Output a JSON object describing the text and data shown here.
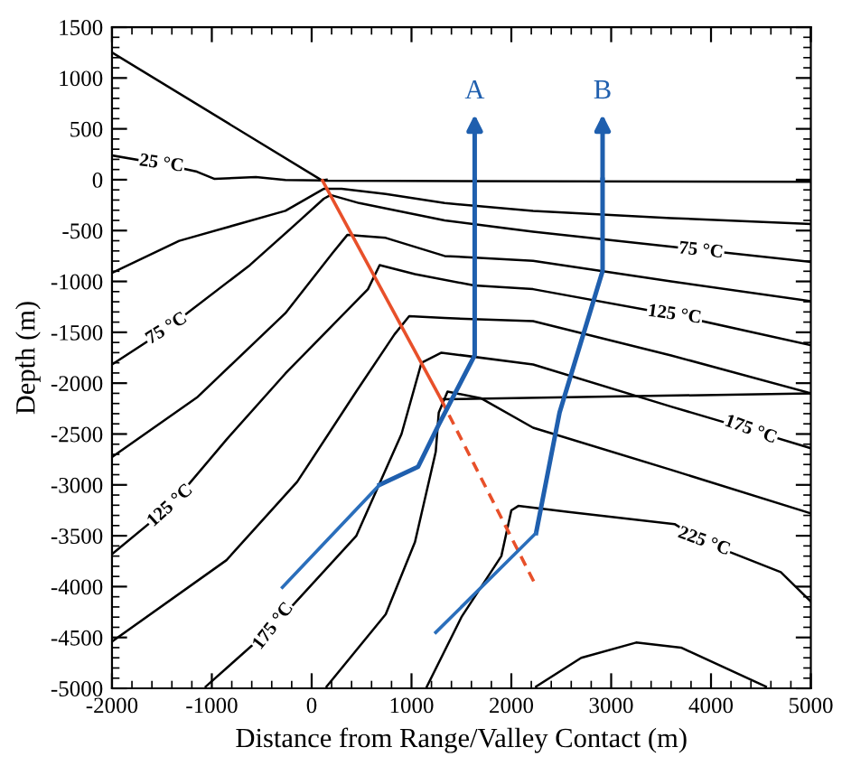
{
  "chart_data": {
    "type": "line",
    "xlabel": "Distance from Range/Valley Contact (m)",
    "ylabel": "Depth (m)",
    "xlim": [
      -2000,
      5000
    ],
    "ylim": [
      -5000,
      1500
    ],
    "xticks": [
      -2000,
      -1000,
      0,
      1000,
      2000,
      3000,
      4000,
      5000
    ],
    "yticks": [
      -5000,
      -4500,
      -4000,
      -3500,
      -3000,
      -2500,
      -2000,
      -1500,
      -1000,
      -500,
      0,
      500,
      1000,
      1500
    ],
    "grid": false,
    "legend": false,
    "marker": "none",
    "series": [
      {
        "color": "#000000",
        "x": [
          -2000,
          109,
          5000
        ],
        "values": [
          1250,
          -10,
          -20
        ]
      },
      {
        "color": "#000000",
        "x": [
          1296,
          5000
        ],
        "values": [
          -2159,
          -2100
        ]
      },
      {
        "color": "#000000",
        "x": [
          -2000,
          -1504,
          -1149,
          -972,
          -559,
          -263,
          91,
          150
        ],
        "values": [
          239,
          155,
          79,
          8,
          26,
          -3,
          -8,
          0
        ]
      },
      {
        "color": "#000000",
        "x": [
          -2000,
          -1327,
          -263,
          120,
          300,
          742,
          1332,
          2218,
          3600,
          5000
        ],
        "values": [
          -916,
          -601,
          -306,
          -90,
          -90,
          -140,
          -230,
          -306,
          -377,
          -436
        ]
      },
      {
        "color": "#000000",
        "x": [
          -2000,
          -1451,
          -618,
          -145,
          121,
          190,
          476,
          1332,
          2218,
          3635,
          5000
        ],
        "values": [
          -1816,
          -1466,
          -839,
          -424,
          -187,
          -150,
          -230,
          -400,
          -512,
          -662,
          -809
        ]
      },
      {
        "color": "#000000",
        "x": [
          -2000,
          -1149,
          -263,
          210,
          357,
          742,
          1332,
          2218,
          3600,
          5000
        ],
        "values": [
          -2727,
          -2141,
          -1312,
          -720,
          -543,
          -572,
          -750,
          -797,
          -999,
          -1195
        ]
      },
      {
        "color": "#000000",
        "x": [
          -2000,
          -1415,
          -853,
          -263,
          564,
          681,
          1035,
          1628,
          2218,
          3635,
          5000
        ],
        "values": [
          -3681,
          -3207,
          -2555,
          -1905,
          -1076,
          -839,
          -928,
          -1040,
          -1076,
          -1330,
          -1626
        ]
      },
      {
        "color": "#000000",
        "x": [
          -2000,
          -853,
          -145,
          446,
          830,
          977,
          1332,
          2218,
          3600,
          5000
        ],
        "values": [
          -4540,
          -3740,
          -2970,
          -2083,
          -1520,
          -1342,
          -1360,
          -1390,
          -1727,
          -2100
        ]
      },
      {
        "color": "#000000",
        "x": [
          -1061,
          -382,
          446,
          900,
          1100,
          1300,
          2218,
          3600,
          4397,
          5000
        ],
        "values": [
          -4983,
          -4391,
          -3503,
          -2500,
          -1800,
          -1700,
          -1816,
          -2230,
          -2461,
          -2640
        ]
      },
      {
        "color": "#000000",
        "x": [
          150,
          742,
          1035,
          1243,
          1273,
          1361,
          1700,
          2218,
          3600,
          5000
        ],
        "values": [
          -4983,
          -4272,
          -3562,
          -2674,
          -2289,
          -2083,
          -2150,
          -2438,
          -2852,
          -3280
        ]
      },
      {
        "color": "#000000",
        "x": [
          1154,
          1500,
          1900,
          2000,
          2070,
          2572,
          3635,
          3930,
          4699,
          5000
        ],
        "values": [
          -4983,
          -4300,
          -3700,
          -3250,
          -3207,
          -3266,
          -3385,
          -3560,
          -3858,
          -4148
        ]
      },
      {
        "color": "#000000",
        "x": [
          2248,
          2700,
          3250,
          3700,
          4550
        ],
        "values": [
          -4983,
          -4700,
          -4550,
          -4600,
          -4983
        ]
      },
      {
        "color": "#e8502a",
        "x": [
          109,
          1296
        ],
        "values": [
          -10,
          -2159
        ]
      },
      {
        "color": "#e8502a",
        "line_style": "dashed",
        "x": [
          1296,
          2235
        ],
        "values": [
          -2159,
          -3970
        ]
      },
      {
        "name": "A",
        "color": "#1f5fae",
        "x": [
          1633,
          1633,
          1273,
          1066,
          681
        ],
        "values": [
          0,
          -1727,
          -2408,
          -2822,
          -2999
        ]
      },
      {
        "color": "#2a6ebb",
        "x": [
          681,
          -293
        ],
        "values": [
          -2999,
          -4006
        ]
      },
      {
        "name": "B",
        "color": "#1f5fae",
        "x": [
          2914,
          2914,
          2483,
          2248
        ],
        "values": [
          0,
          -898,
          -2289,
          -3473
        ]
      },
      {
        "color": "#2a6ebb",
        "x": [
          2248,
          1243
        ],
        "values": [
          -3473,
          -4450
        ]
      }
    ],
    "annotations": [
      {
        "text": "25 °C",
        "x": -1504,
        "y": 155
      },
      {
        "text": "75 °C",
        "x": -1451,
        "y": -1466
      },
      {
        "text": "75 °C",
        "x": 3900,
        "y": -700
      },
      {
        "text": "125 °C",
        "x": -1415,
        "y": -3207
      },
      {
        "text": "125 °C",
        "x": 3635,
        "y": -1330
      },
      {
        "text": "175 °C",
        "x": -382,
        "y": -4391
      },
      {
        "text": "175 °C",
        "x": 4397,
        "y": -2461
      },
      {
        "text": "225 °C",
        "x": 3930,
        "y": -3560
      }
    ]
  }
}
